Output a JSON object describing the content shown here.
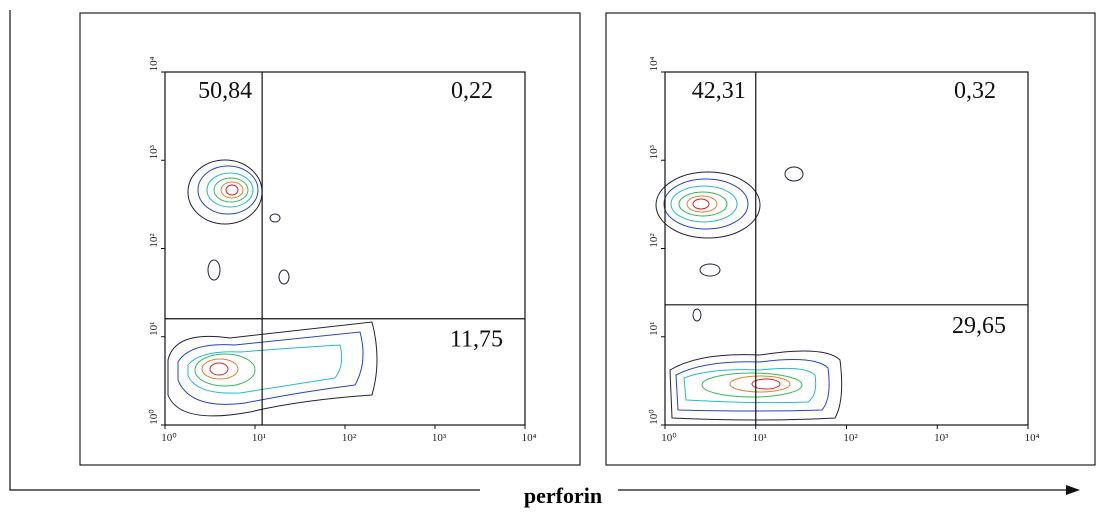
{
  "axis_label": "perforin",
  "chart_data": [
    {
      "type": "quadrant",
      "log_scale": true,
      "xlim": [
        1,
        10000
      ],
      "ylim": [
        1,
        10000
      ],
      "xticks": [
        {
          "value": 1,
          "label": "10⁰"
        },
        {
          "value": 10,
          "label": "10¹"
        },
        {
          "value": 100,
          "label": "10²"
        },
        {
          "value": 1000,
          "label": "10³"
        },
        {
          "value": 10000,
          "label": "10⁴"
        }
      ],
      "yticks": [
        {
          "value": 1,
          "label": "10⁰"
        },
        {
          "value": 10,
          "label": "10¹"
        },
        {
          "value": 100,
          "label": "10²"
        },
        {
          "value": 1000,
          "label": "10³"
        },
        {
          "value": 10000,
          "label": "10⁴"
        }
      ],
      "gate": {
        "x": 12,
        "y": 16
      },
      "quadrants": {
        "upper_left": 50.84,
        "upper_right": 0.22,
        "lower_right": 11.75
      },
      "value_labels": {
        "upper_left": "50,84",
        "upper_right": "0,22",
        "lower_right": "11,75"
      }
    },
    {
      "type": "quadrant",
      "log_scale": true,
      "xlim": [
        1,
        10000
      ],
      "ylim": [
        1,
        10000
      ],
      "xticks": [
        {
          "value": 1,
          "label": "10⁰"
        },
        {
          "value": 10,
          "label": "10¹"
        },
        {
          "value": 100,
          "label": "10²"
        },
        {
          "value": 1000,
          "label": "10³"
        },
        {
          "value": 10000,
          "label": "10⁴"
        }
      ],
      "yticks": [
        {
          "value": 1,
          "label": "10⁰"
        },
        {
          "value": 10,
          "label": "10¹"
        },
        {
          "value": 100,
          "label": "10²"
        },
        {
          "value": 1000,
          "label": "10³"
        },
        {
          "value": 10000,
          "label": "10⁴"
        }
      ],
      "gate": {
        "x": 10,
        "y": 23
      },
      "quadrants": {
        "upper_left": 42.31,
        "upper_right": 0.32,
        "lower_right": 29.65
      },
      "value_labels": {
        "upper_left": "42,31",
        "upper_right": "0,32",
        "lower_right": "29,65"
      }
    }
  ]
}
